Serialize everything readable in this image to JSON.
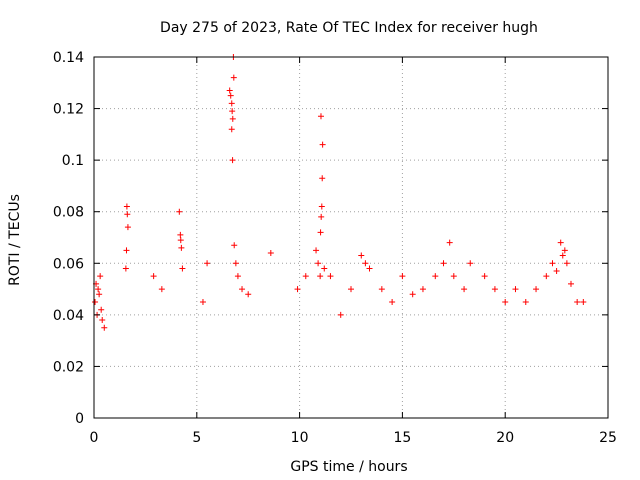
{
  "chart_data": {
    "type": "scatter",
    "title": "Day 275 of 2023, Rate Of TEC Index for receiver hugh",
    "xlabel": "GPS time / hours",
    "ylabel": "ROTI / TECUs",
    "xlim": [
      0,
      25
    ],
    "ylim": [
      0,
      0.14
    ],
    "x_ticks": [
      0,
      5,
      10,
      15,
      20,
      25
    ],
    "y_ticks": [
      0,
      0.02,
      0.04,
      0.06,
      0.08,
      0.1,
      0.12,
      0.14
    ],
    "x_tick_labels": [
      "0",
      "5",
      "10",
      "15",
      "20",
      "25"
    ],
    "y_tick_labels": [
      "0",
      "0.02",
      "0.04",
      "0.06",
      "0.08",
      "0.1",
      "0.12",
      "0.14"
    ],
    "grid": true,
    "marker": "+",
    "marker_color": "#ff0000",
    "series": [
      {
        "x": [
          0.05,
          0.1,
          0.15,
          0.2,
          0.25,
          0.3,
          0.35,
          0.4,
          0.5,
          1.6,
          1.62,
          1.65,
          1.58,
          1.55,
          2.9,
          3.3,
          4.15,
          4.2,
          4.22,
          4.25,
          4.3,
          5.3,
          5.5,
          6.6,
          6.65,
          6.7,
          6.72,
          6.75,
          6.78,
          6.8,
          6.7,
          6.74,
          6.82,
          6.9,
          7.0,
          7.2,
          7.5,
          8.6,
          9.9,
          10.3,
          10.8,
          10.9,
          11.0,
          11.02,
          11.05,
          11.08,
          11.1,
          11.12,
          11.04,
          11.2,
          11.5,
          12.0,
          12.5,
          13.0,
          13.2,
          13.4,
          14.0,
          14.5,
          15.0,
          15.5,
          16.0,
          16.6,
          17.0,
          17.3,
          17.5,
          18.0,
          18.3,
          19.0,
          19.5,
          20.0,
          20.5,
          21.0,
          21.5,
          22.0,
          22.3,
          22.5,
          22.7,
          22.8,
          22.9,
          23.0,
          23.2,
          23.5,
          23.8
        ],
        "y": [
          0.045,
          0.052,
          0.04,
          0.05,
          0.048,
          0.055,
          0.042,
          0.038,
          0.035,
          0.082,
          0.079,
          0.074,
          0.065,
          0.058,
          0.055,
          0.05,
          0.08,
          0.071,
          0.069,
          0.066,
          0.058,
          0.045,
          0.06,
          0.127,
          0.125,
          0.122,
          0.119,
          0.116,
          0.14,
          0.132,
          0.112,
          0.1,
          0.067,
          0.06,
          0.055,
          0.05,
          0.048,
          0.064,
          0.05,
          0.055,
          0.065,
          0.06,
          0.055,
          0.072,
          0.078,
          0.082,
          0.093,
          0.106,
          0.117,
          0.058,
          0.055,
          0.04,
          0.05,
          0.063,
          0.06,
          0.058,
          0.05,
          0.045,
          0.055,
          0.048,
          0.05,
          0.055,
          0.06,
          0.068,
          0.055,
          0.05,
          0.06,
          0.055,
          0.05,
          0.045,
          0.05,
          0.045,
          0.05,
          0.055,
          0.06,
          0.057,
          0.068,
          0.063,
          0.065,
          0.06,
          0.052,
          0.045,
          0.045
        ]
      }
    ]
  }
}
